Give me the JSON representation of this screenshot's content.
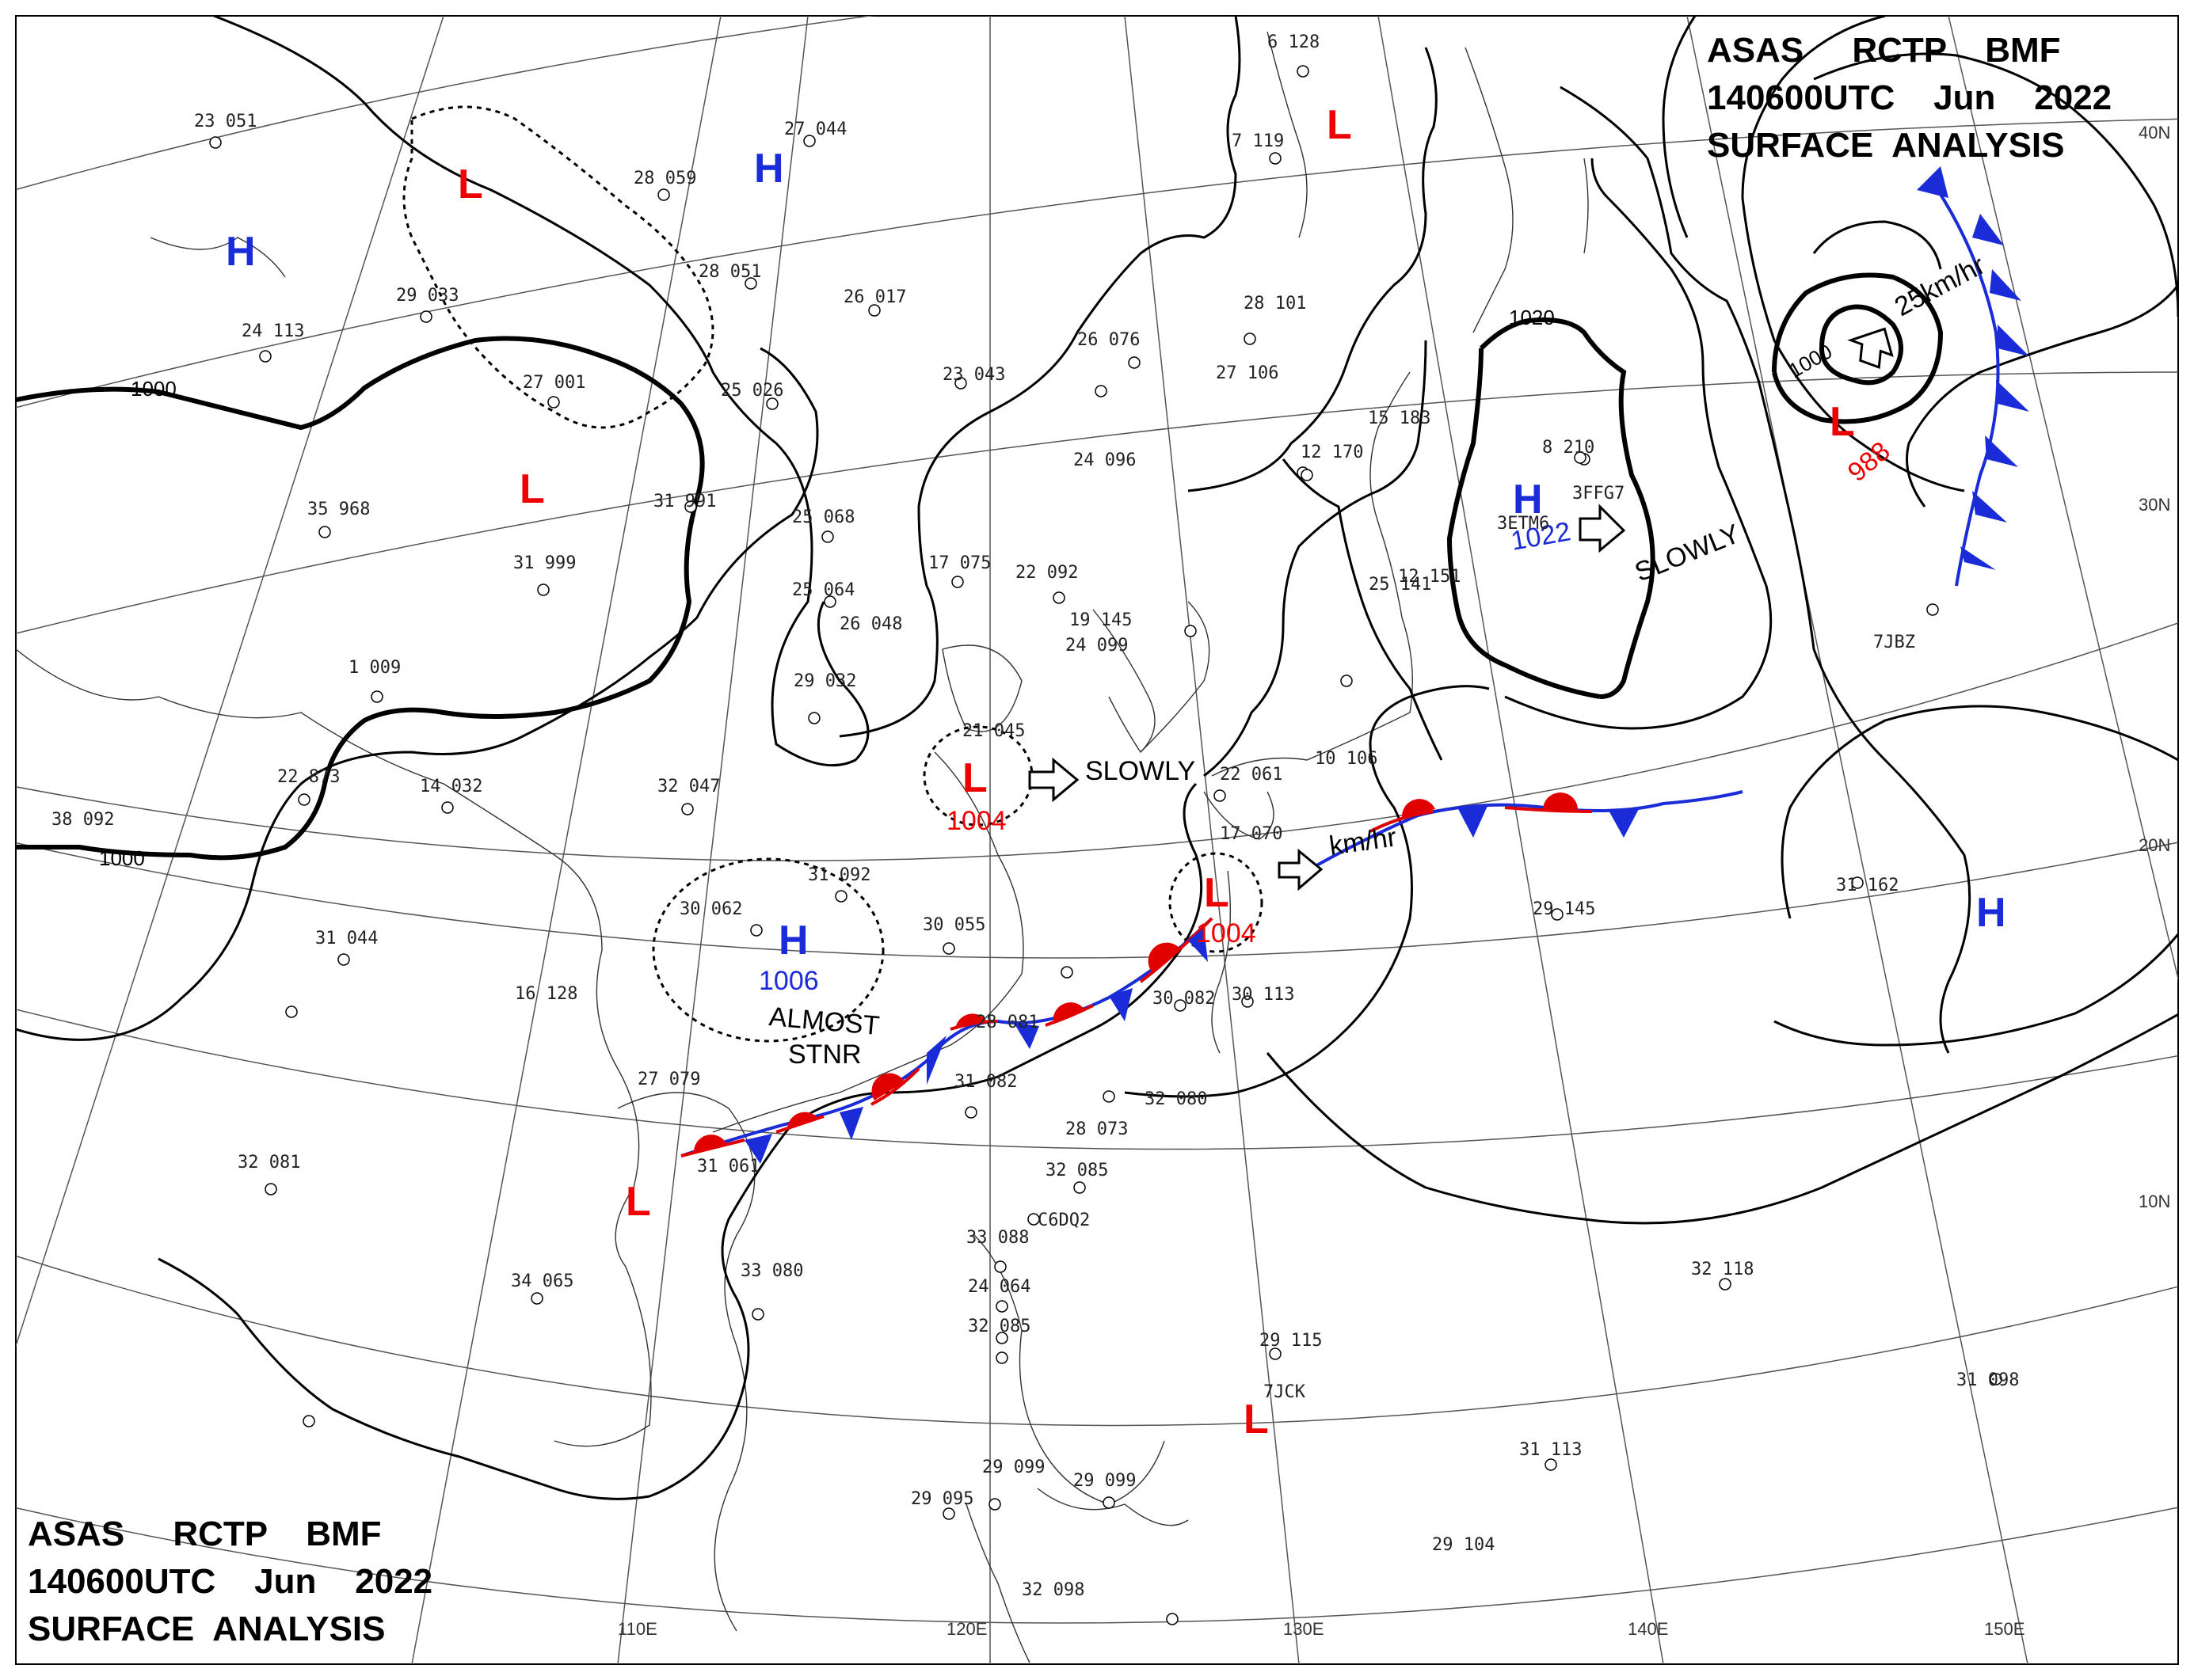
{
  "header_top": {
    "line1": "ASAS     RCTP    BMF",
    "line2": "140600UTC    Jun    2022",
    "line3": "SURFACE  ANALYSIS"
  },
  "header_bottom": {
    "line1": "ASAS     RCTP    BMF",
    "line2": "140600UTC    Jun    2022",
    "line3": "SURFACE  ANALYSIS"
  },
  "longitudes": [
    "110E",
    "120E",
    "130E",
    "140E",
    "150E"
  ],
  "latitudes": [
    "40N",
    "30N",
    "20N",
    "10N"
  ],
  "isobar_labels": [
    "1000",
    "1000",
    "1020",
    "1000"
  ],
  "pressure_centers": [
    {
      "symbol": "L",
      "value": "",
      "kind": "low"
    },
    {
      "symbol": "L",
      "value": "",
      "kind": "low"
    },
    {
      "symbol": "L",
      "value": "",
      "kind": "low"
    },
    {
      "symbol": "L",
      "value": "1004",
      "kind": "low"
    },
    {
      "symbol": "L",
      "value": "1004",
      "kind": "low"
    },
    {
      "symbol": "L",
      "value": "988",
      "kind": "low"
    },
    {
      "symbol": "L",
      "value": "",
      "kind": "low"
    },
    {
      "symbol": "L",
      "value": "",
      "kind": "low"
    },
    {
      "symbol": "H",
      "value": "",
      "kind": "high"
    },
    {
      "symbol": "H",
      "value": "",
      "kind": "high"
    },
    {
      "symbol": "H",
      "value": "1006",
      "kind": "high"
    },
    {
      "symbol": "H",
      "value": "1022",
      "kind": "high"
    },
    {
      "symbol": "H",
      "value": "",
      "kind": "high"
    }
  ],
  "motion_notes": [
    "SLOWLY",
    "SLOWLY",
    "25km/hr",
    "km/hr",
    "ALMOST",
    "STNR"
  ],
  "station_text": [
    "23 051",
    "27 044",
    "28 059",
    "28 051",
    "26 017",
    "29 033",
    "24 113",
    "27 001",
    "25 026",
    "23 043",
    "26 076",
    "28 101",
    "27 106",
    "24 096",
    "31 991",
    "35 968",
    "31 999",
    "25 068",
    "25 064",
    "17 075",
    "22 092",
    "26 048",
    "19 145",
    "24 099",
    "29 032",
    "1 009",
    "22 873",
    "14 032",
    "32 047",
    "38 092",
    "21 045",
    "31 092",
    "30 062",
    "30 055",
    "31 044",
    "16 128",
    "27 079",
    "28 081",
    "33 080",
    "31 082",
    "28 073",
    "32 085",
    "31 061",
    "32 081",
    "34 065",
    "32 080",
    "33 088",
    "24 064",
    "32 085",
    "29 095",
    "29 099",
    "29 099",
    "32 098",
    "29 115",
    "29 145",
    "31 162",
    "32 118",
    "31 098",
    "31 113",
    "29 104",
    "12 170",
    "15 183",
    "8 210",
    "25 141",
    "7 119",
    "6 128",
    "12 151",
    "30 082",
    "30 113",
    "22 061",
    "10 106",
    "17 070",
    "3ETM6",
    "3FFG7",
    "7JBZ",
    "7JCK",
    "C6DQ2"
  ],
  "colors": {
    "warm_front": "#e00000",
    "cold_front": "#1a2bd8",
    "grid": "#555555",
    "coast": "#333333",
    "isobar": "#000000"
  }
}
